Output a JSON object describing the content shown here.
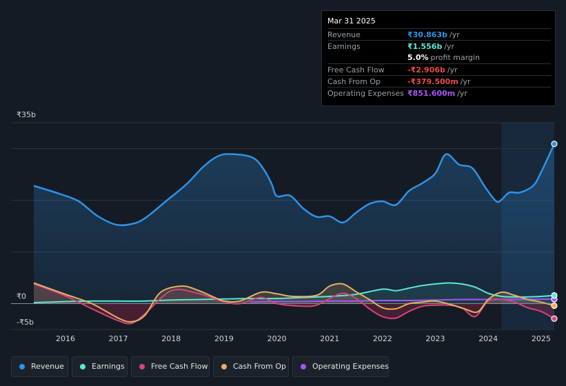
{
  "tooltip": {
    "date": "Mar 31 2025",
    "rows": [
      {
        "label": "Revenue",
        "value": "₹30.863b",
        "unit": "/yr",
        "color": "#2e93e6"
      },
      {
        "label": "Earnings",
        "value": "₹1.556b",
        "unit": "/yr",
        "color": "#5ce8d6"
      },
      {
        "label": "",
        "value": "5.0%",
        "unit": "profit margin",
        "color": "#ffffff"
      },
      {
        "label": "Free Cash Flow",
        "value": "-₹2.906b",
        "unit": "/yr",
        "color": "#e84a4a"
      },
      {
        "label": "Cash From Op",
        "value": "-₹379.500m",
        "unit": "/yr",
        "color": "#e84a4a"
      },
      {
        "label": "Operating Expenses",
        "value": "₹851.600m",
        "unit": "/yr",
        "color": "#a855f7"
      }
    ]
  },
  "legend": [
    {
      "label": "Revenue",
      "color": "#2e93e6"
    },
    {
      "label": "Earnings",
      "color": "#5ce8d6"
    },
    {
      "label": "Free Cash Flow",
      "color": "#d4457e"
    },
    {
      "label": "Cash From Op",
      "color": "#e8b060"
    },
    {
      "label": "Operating Expenses",
      "color": "#a855f7"
    }
  ],
  "chart_data": {
    "type": "line",
    "title": "",
    "xlabel": "",
    "ylabel": "",
    "units": "₹b",
    "y_tick_labels": [
      "₹35b",
      "₹0",
      "-₹5b"
    ],
    "y_ticks": [
      35,
      0,
      -5
    ],
    "x_tick_labels": [
      "2016",
      "2017",
      "2018",
      "2019",
      "2020",
      "2021",
      "2022",
      "2023",
      "2024",
      "2025"
    ],
    "x_ticks": [
      2016,
      2017,
      2018,
      2019,
      2020,
      2021,
      2022,
      2023,
      2024,
      2025
    ],
    "xlim": [
      2015.4,
      2025.25
    ],
    "ylim": [
      -5,
      35
    ],
    "highlight_from": 2024.25,
    "series": [
      {
        "name": "Revenue",
        "color": "#2e93e6",
        "x": [
          2015.4,
          2015.9,
          2016.25,
          2016.6,
          2016.95,
          2017.25,
          2017.5,
          2017.9,
          2018.3,
          2018.6,
          2018.9,
          2019.2,
          2019.55,
          2019.75,
          2019.9,
          2020.0,
          2020.25,
          2020.5,
          2020.75,
          2021.0,
          2021.25,
          2021.5,
          2021.75,
          2022.0,
          2022.25,
          2022.5,
          2022.75,
          2023.0,
          2023.2,
          2023.45,
          2023.7,
          2023.95,
          2024.15,
          2024.25,
          2024.4,
          2024.6,
          2024.85,
          2025.0,
          2025.25
        ],
        "values": [
          22.8,
          21.2,
          19.8,
          17.0,
          15.3,
          15.4,
          16.5,
          19.8,
          23.2,
          26.4,
          28.6,
          28.9,
          28.2,
          26.0,
          23.2,
          20.8,
          20.9,
          18.4,
          16.8,
          16.9,
          15.7,
          17.6,
          19.3,
          19.8,
          19.1,
          21.8,
          23.3,
          25.2,
          28.9,
          26.9,
          26.2,
          22.4,
          19.8,
          20.1,
          21.5,
          21.5,
          22.8,
          25.4,
          30.9
        ]
      },
      {
        "name": "Earnings",
        "color": "#5ce8d6",
        "x": [
          2015.4,
          2016.0,
          2016.5,
          2017.0,
          2017.5,
          2018.0,
          2018.5,
          2019.0,
          2019.5,
          2020.0,
          2020.5,
          2021.0,
          2021.5,
          2022.0,
          2022.25,
          2022.5,
          2022.75,
          2023.0,
          2023.25,
          2023.5,
          2023.75,
          2024.0,
          2024.25,
          2024.5,
          2024.75,
          2025.0,
          2025.25
        ],
        "values": [
          0.2,
          0.4,
          0.5,
          0.5,
          0.5,
          0.7,
          0.8,
          0.9,
          1.0,
          1.0,
          1.2,
          1.4,
          1.8,
          2.8,
          2.5,
          3.0,
          3.5,
          3.8,
          4.0,
          3.8,
          3.2,
          2.0,
          1.4,
          1.3,
          1.3,
          1.4,
          1.6
        ]
      },
      {
        "name": "Free Cash Flow",
        "color": "#d4457e",
        "x": [
          2015.4,
          2016.0,
          2016.5,
          2017.0,
          2017.25,
          2017.5,
          2018.0,
          2018.5,
          2019.0,
          2019.3,
          2019.7,
          2020.0,
          2020.5,
          2020.75,
          2021.0,
          2021.25,
          2021.5,
          2021.75,
          2022.0,
          2022.25,
          2022.5,
          2022.75,
          2023.0,
          2023.25,
          2023.5,
          2023.75,
          2024.0,
          2024.25,
          2024.5,
          2024.75,
          2025.0,
          2025.25
        ],
        "values": [
          3.8,
          1.5,
          -1.0,
          -3.3,
          -3.8,
          -2.0,
          2.5,
          2.0,
          0.4,
          0.0,
          1.2,
          0.0,
          -0.5,
          -0.3,
          1.0,
          2.0,
          1.0,
          -1.0,
          -2.5,
          -2.8,
          -1.5,
          -0.5,
          -0.3,
          -0.3,
          -0.8,
          -2.5,
          0.5,
          0.8,
          0.3,
          -0.8,
          -1.5,
          -2.9
        ]
      },
      {
        "name": "Cash From Op",
        "color": "#e8b060",
        "x": [
          2015.4,
          2016.0,
          2016.5,
          2017.0,
          2017.25,
          2017.5,
          2017.8,
          2018.2,
          2018.5,
          2018.8,
          2019.0,
          2019.3,
          2019.7,
          2020.0,
          2020.3,
          2020.75,
          2021.0,
          2021.25,
          2021.5,
          2021.75,
          2022.0,
          2022.25,
          2022.5,
          2022.75,
          2023.0,
          2023.3,
          2023.55,
          2023.8,
          2024.0,
          2024.25,
          2024.5,
          2024.75,
          2025.0,
          2025.25
        ],
        "values": [
          4.0,
          1.8,
          0.0,
          -2.8,
          -3.5,
          -2.3,
          2.2,
          3.4,
          2.6,
          1.3,
          0.5,
          0.5,
          2.2,
          1.9,
          1.4,
          1.6,
          3.4,
          3.8,
          2.3,
          0.8,
          -0.8,
          -1.0,
          0.0,
          0.3,
          0.5,
          -0.2,
          -1.0,
          -1.6,
          0.8,
          2.2,
          1.6,
          0.8,
          0.3,
          -0.4
        ]
      },
      {
        "name": "Operating Expenses",
        "color": "#a855f7",
        "x": [
          2019.5,
          2020.0,
          2020.5,
          2021.0,
          2021.5,
          2022.0,
          2022.5,
          2023.0,
          2023.5,
          2024.0,
          2024.5,
          2025.0,
          2025.25
        ],
        "values": [
          0.3,
          0.4,
          0.4,
          0.5,
          0.5,
          0.6,
          0.6,
          0.7,
          0.8,
          0.8,
          0.8,
          0.85,
          0.85
        ]
      }
    ]
  }
}
